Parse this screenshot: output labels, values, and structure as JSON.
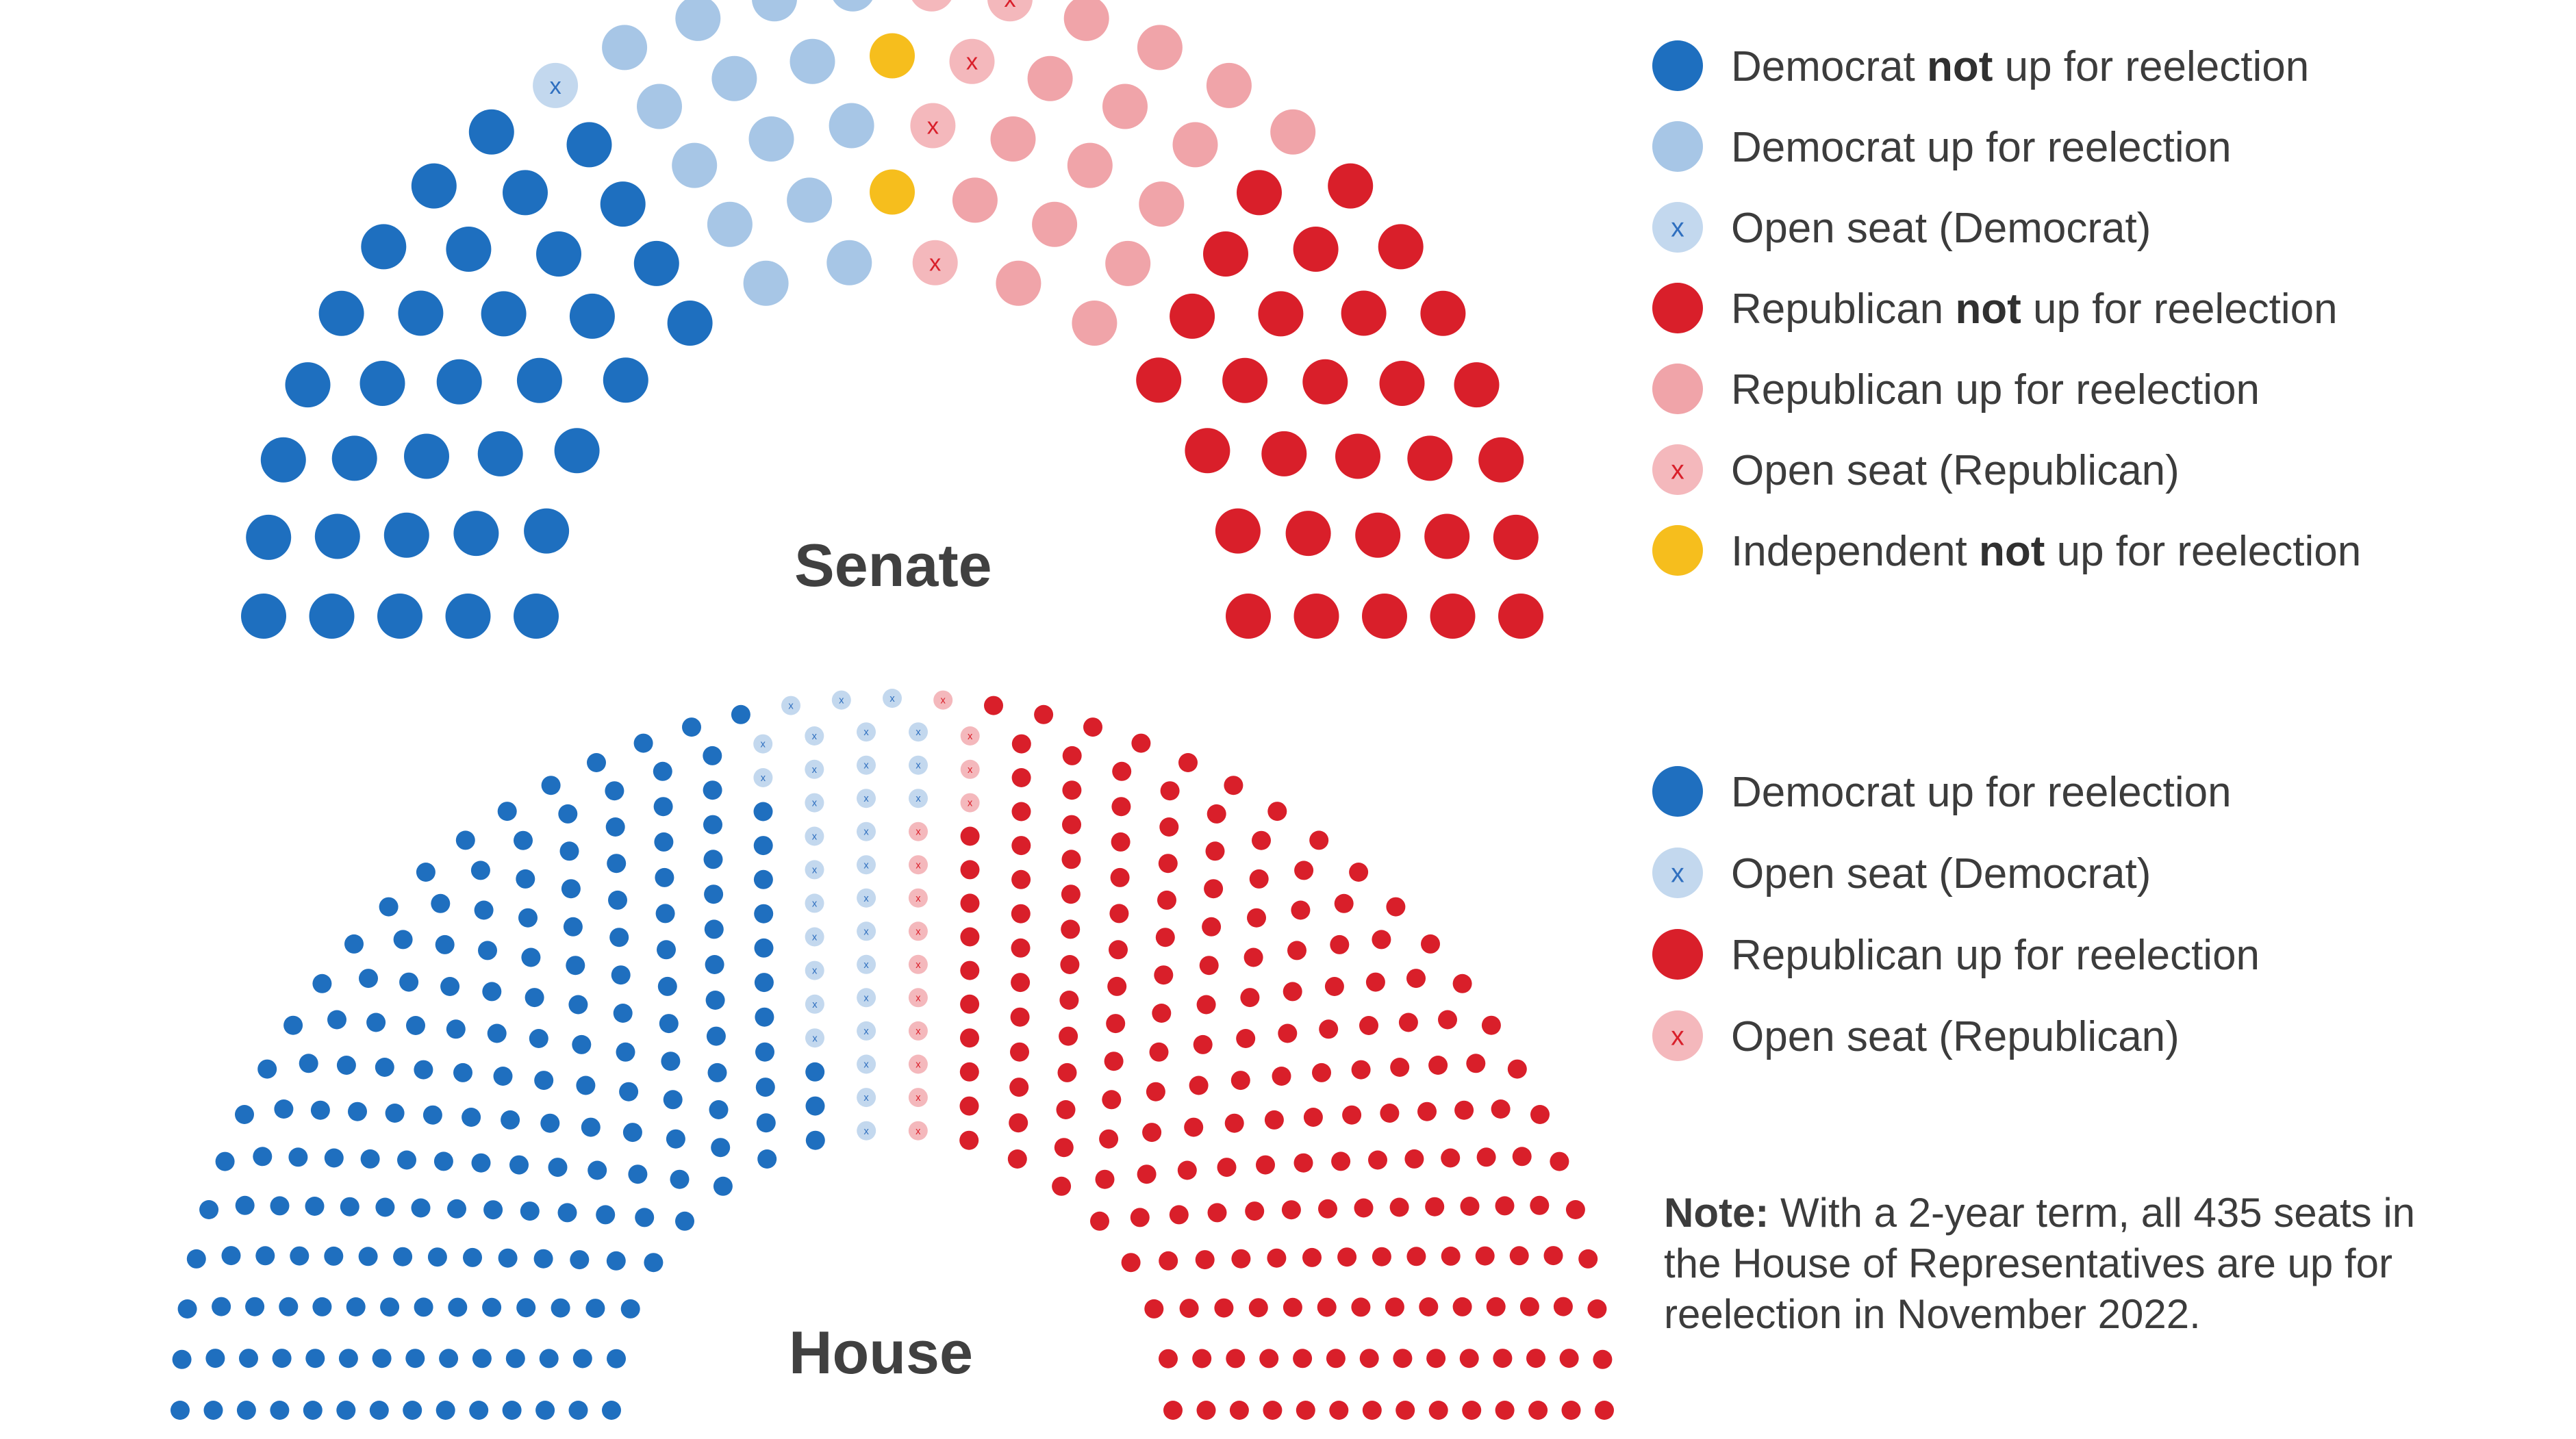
{
  "colors": {
    "dem_safe": "#1e6fbf",
    "dem_up": "#a7c6e6",
    "dem_open_fill": "#c3d8ee",
    "dem_open_mark": "#2f6fbf",
    "rep_safe": "#d91f2a",
    "rep_up": "#f0a4a9",
    "rep_open_fill": "#f4b8bc",
    "rep_open_mark": "#d91f2a",
    "ind_safe": "#f6be1d",
    "house_dem": "#1f6fbf",
    "house_rep": "#d91f2a"
  },
  "senate": {
    "title": "Senate",
    "seats": {
      "democrat_not_up": 34,
      "democrat_up": 14,
      "democrat_open": 1,
      "independent_not_up": 2,
      "republican_open": 5,
      "republican_up": 15,
      "republican_not_up": 29
    },
    "legend": [
      {
        "swatch": "dem_safe",
        "pre": "Democrat ",
        "bold": "not",
        "post": " up for reelection"
      },
      {
        "swatch": "dem_up",
        "pre": "Democrat up for reelection",
        "bold": "",
        "post": ""
      },
      {
        "swatch": "dem_open",
        "pre": "Open seat (Democrat)",
        "bold": "",
        "post": ""
      },
      {
        "swatch": "rep_safe",
        "pre": "Republican ",
        "bold": "not",
        "post": " up for reelection"
      },
      {
        "swatch": "rep_up",
        "pre": "Republican up for reelection",
        "bold": "",
        "post": ""
      },
      {
        "swatch": "rep_open",
        "pre": "Open seat (Republican)",
        "bold": "",
        "post": ""
      },
      {
        "swatch": "ind_safe",
        "pre": "Independent ",
        "bold": "not",
        "post": " up for reelection"
      }
    ]
  },
  "house": {
    "title": "House",
    "seats": {
      "democrat_up": 190,
      "democrat_open": 31,
      "republican_open": 14,
      "republican_up": 200
    },
    "legend": [
      {
        "swatch": "house_dem",
        "pre": "Democrat up for reelection",
        "bold": "",
        "post": ""
      },
      {
        "swatch": "dem_open",
        "pre": "Open seat (Democrat)",
        "bold": "",
        "post": ""
      },
      {
        "swatch": "house_rep",
        "pre": "Republican up for reelection",
        "bold": "",
        "post": ""
      },
      {
        "swatch": "rep_open",
        "pre": "Open seat (Republican)",
        "bold": "",
        "post": ""
      }
    ]
  },
  "note": {
    "label": "Note:",
    "text": " With a 2-year term, all 435 seats in the House of Representatives are up for reelection in November 2022."
  },
  "open_marker": "x"
}
